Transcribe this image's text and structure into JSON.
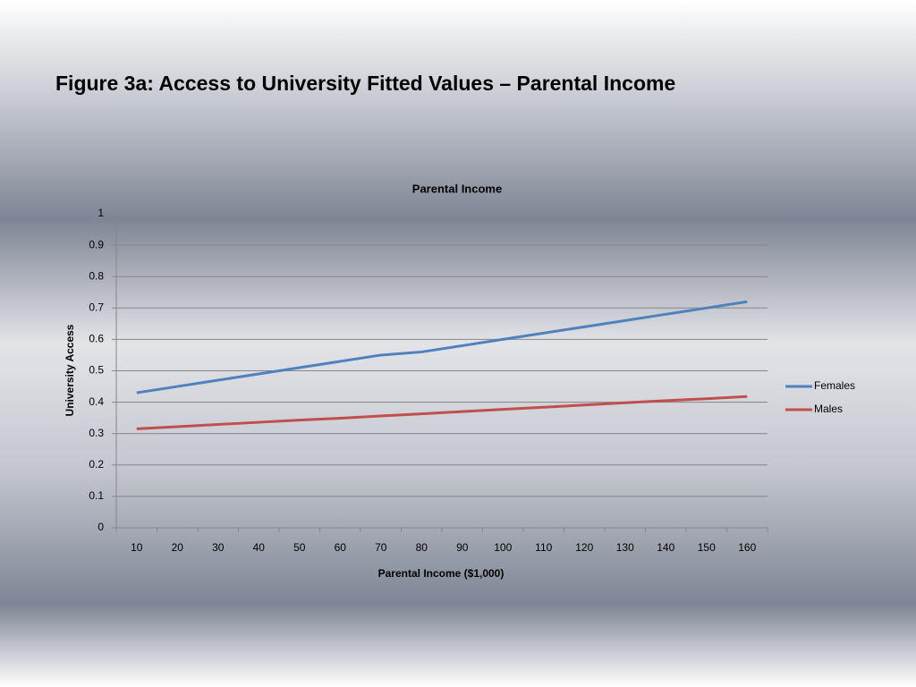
{
  "slide_title": "Figure 3a: Access to University Fitted Values – Parental Income",
  "chart_data": {
    "type": "line",
    "title": "Parental Income",
    "x_label": "Parental Income ($1,000)",
    "y_label": "University Access",
    "categories": [
      10,
      20,
      30,
      40,
      50,
      60,
      70,
      80,
      90,
      100,
      110,
      120,
      130,
      140,
      150,
      160
    ],
    "series": [
      {
        "name": "Females",
        "color": "#4f81bd",
        "values": [
          0.43,
          0.45,
          0.47,
          0.49,
          0.51,
          0.53,
          0.55,
          0.56,
          0.58,
          0.6,
          0.62,
          0.64,
          0.66,
          0.68,
          0.7,
          0.72
        ]
      },
      {
        "name": "Males",
        "color": "#c0504d",
        "values": [
          0.315,
          0.322,
          0.329,
          0.336,
          0.343,
          0.349,
          0.356,
          0.363,
          0.37,
          0.377,
          0.384,
          0.391,
          0.398,
          0.405,
          0.411,
          0.418
        ]
      }
    ],
    "ylim": [
      0,
      1
    ],
    "yticks": [
      0,
      0.1,
      0.2,
      0.3,
      0.4,
      0.5,
      0.6,
      0.7,
      0.8,
      0.9,
      1
    ],
    "grid": true,
    "legend": "right"
  }
}
